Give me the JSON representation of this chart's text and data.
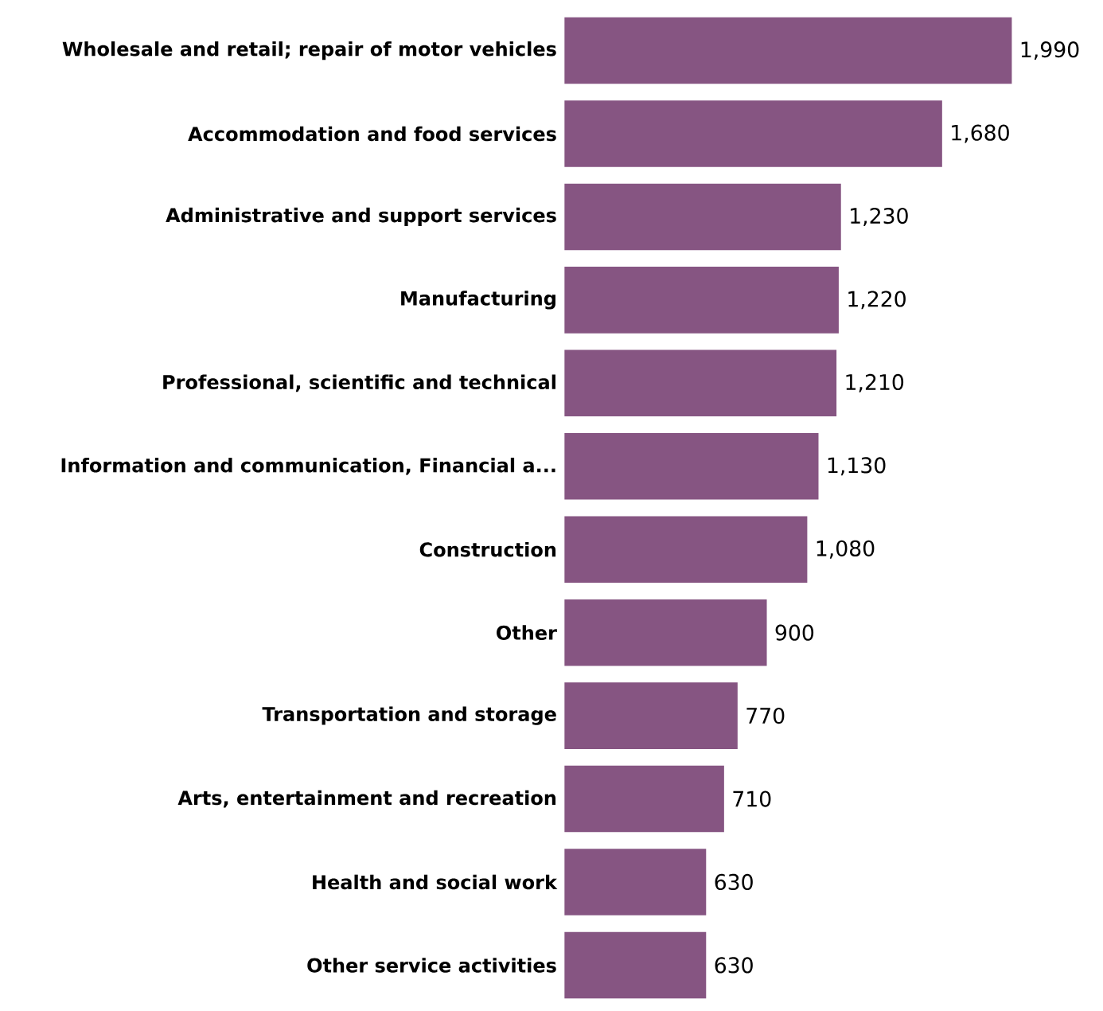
{
  "chart_data": {
    "type": "bar",
    "orientation": "horizontal",
    "categories": [
      "Wholesale and retail; repair of motor vehicles",
      "Accommodation and food services",
      "Administrative and support services",
      "Manufacturing",
      "Professional, scientific and technical",
      "Information and communication, Financial a...",
      "Construction",
      "Other",
      "Transportation and storage",
      "Arts, entertainment and recreation",
      "Health and social work",
      "Other service activities"
    ],
    "values": [
      1990,
      1680,
      1230,
      1220,
      1210,
      1130,
      1080,
      900,
      770,
      710,
      630,
      630
    ],
    "value_labels": [
      "1,990",
      "1,680",
      "1,230",
      "1,220",
      "1,210",
      "1,130",
      "1,080",
      "900",
      "770",
      "710",
      "630",
      "630"
    ],
    "color": "#865582"
  }
}
